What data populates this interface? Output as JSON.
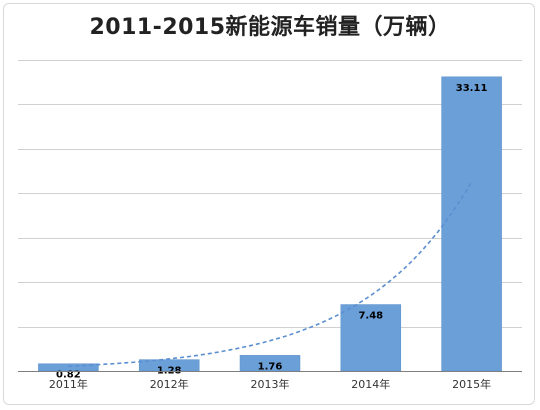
{
  "chart_data": {
    "type": "bar",
    "title": "2011-2015新能源车销量（万辆）",
    "xlabel": "",
    "ylabel": "",
    "categories": [
      "2011年",
      "2012年",
      "2013年",
      "2014年",
      "2015年"
    ],
    "series": [
      {
        "values": [
          0.82,
          1.28,
          1.76,
          7.48,
          33.11
        ],
        "data_labels": [
          "0.82",
          "1.28",
          "1.76",
          "7.48",
          "33.11"
        ]
      }
    ],
    "trendline": {
      "type": "exponential",
      "style": "dashed"
    },
    "ylim": [
      0,
      35
    ],
    "y_axis_labels_visible": false,
    "grid": true,
    "legend": "none",
    "colors": {
      "bar": "#6a9fd8",
      "bar_edge": "#5b8fc9",
      "trend": "#5b8fd1",
      "grid": "#d0d0d0",
      "axis": "#7f7f7f"
    }
  }
}
